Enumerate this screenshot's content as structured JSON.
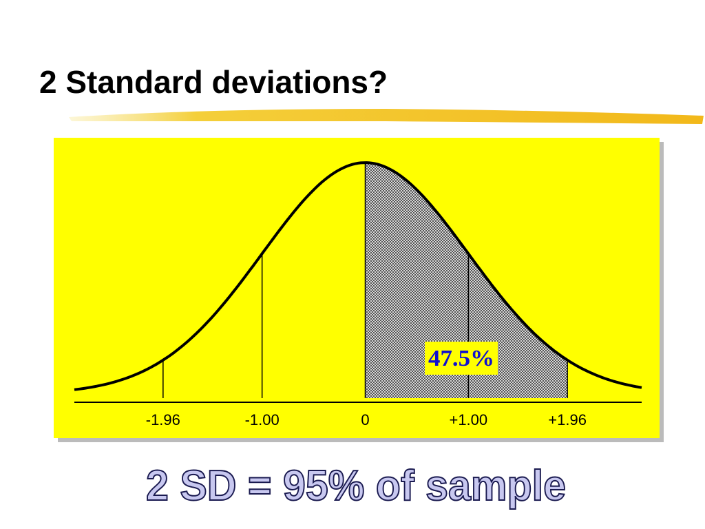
{
  "title": "2 Standard deviations?",
  "caption": "2 SD = 95% of sample",
  "chart_data": {
    "type": "normal",
    "xlim": [
      -2.82,
      2.68
    ],
    "xticks": [
      {
        "value": -1.96,
        "label": "-1.96"
      },
      {
        "value": -1,
        "label": "-1.00"
      },
      0,
      {
        "value": 1,
        "label": "+1.00"
      },
      {
        "value": 1.96,
        "label": "+1.96"
      }
    ],
    "shaded_range": [
      0,
      1.96
    ],
    "annotation": "47.5%",
    "color": "#000000",
    "background": "#ffff00"
  }
}
